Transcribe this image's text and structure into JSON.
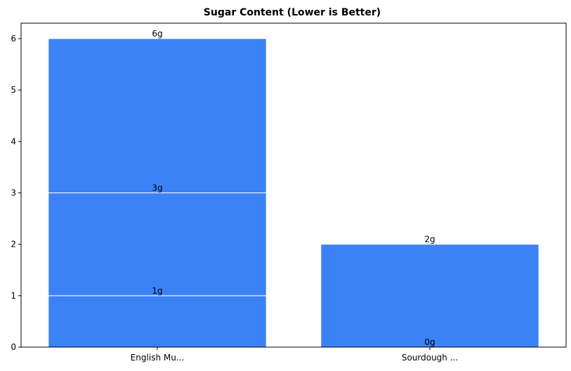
{
  "chart_data": {
    "type": "bar",
    "title": "Sugar Content (Lower is Better)",
    "xlabel": "",
    "ylabel": "",
    "categories": [
      "English Mu...",
      "Sourdough ..."
    ],
    "segments": [
      {
        "category": "English Mu...",
        "base": 0,
        "top": 1,
        "label": "1g"
      },
      {
        "category": "English Mu...",
        "base": 1,
        "top": 3,
        "label": "3g"
      },
      {
        "category": "English Mu...",
        "base": 3,
        "top": 6,
        "label": "6g"
      },
      {
        "category": "Sourdough ...",
        "base": 0,
        "top": 0,
        "label": "0g"
      },
      {
        "category": "Sourdough ...",
        "base": 0,
        "top": 2,
        "label": "2g"
      }
    ],
    "ylim": [
      0,
      6.3
    ],
    "yticks": [
      0,
      1,
      2,
      3,
      4,
      5,
      6
    ],
    "grid": false,
    "bar_color": "#3b82f6",
    "edge_color": "#ffffff"
  }
}
